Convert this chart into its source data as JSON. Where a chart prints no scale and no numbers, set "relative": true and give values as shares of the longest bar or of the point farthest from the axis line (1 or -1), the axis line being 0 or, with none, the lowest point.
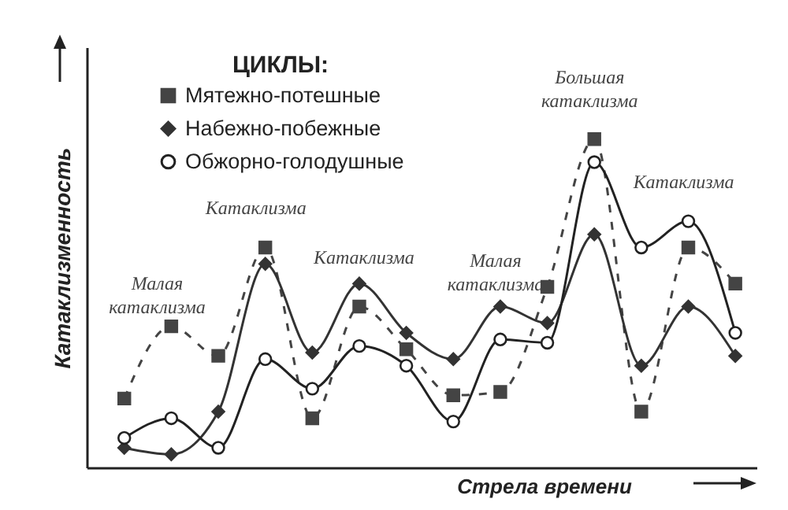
{
  "chart_data": {
    "type": "line",
    "relative": true,
    "legend_title": "ЦИКЛЫ:",
    "legend": "top",
    "tick_labels": false,
    "grid": false,
    "xlabel": "Стрела времени",
    "ylabel": "Катаклизменность",
    "categories": [
      null,
      null,
      null,
      null,
      null,
      null,
      null,
      null,
      null,
      null,
      null,
      null,
      null,
      null
    ],
    "series": [
      {
        "name": "Мятежно-потешные",
        "color": "#444444",
        "marker": "square",
        "line_style": "dashed",
        "values": [
          0.21,
          0.43,
          0.34,
          0.67,
          0.15,
          0.49,
          0.36,
          0.22,
          0.23,
          0.55,
          1.0,
          0.17,
          0.67,
          0.56
        ]
      },
      {
        "name": "Набежно-побежные",
        "color": "#333333",
        "marker": "diamond",
        "line_style": "solid",
        "values": [
          0.06,
          0.04,
          0.17,
          0.62,
          0.35,
          0.56,
          0.41,
          0.33,
          0.49,
          0.44,
          0.71,
          0.31,
          0.49,
          0.34
        ]
      },
      {
        "name": "Обжорно-голодушные",
        "color": "#222222",
        "marker": "circle",
        "line_style": "solid",
        "values": [
          0.09,
          0.15,
          0.06,
          0.33,
          0.24,
          0.37,
          0.31,
          0.14,
          0.39,
          0.38,
          0.93,
          0.67,
          0.75,
          0.41
        ]
      }
    ],
    "annotations": [
      "Малая катаклизма",
      "Катаклизма",
      "Катаклизма",
      "Малая катаклизма",
      "Большая катаклизма",
      "Катаклизма"
    ]
  }
}
